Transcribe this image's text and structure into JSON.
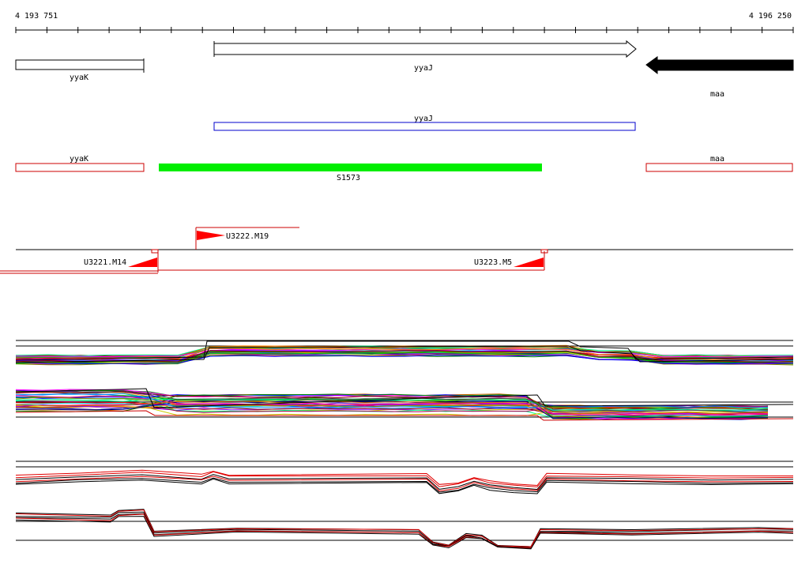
{
  "ruler": {
    "start_label": "4 193 751",
    "end_label": "4 196 250"
  },
  "genes": [
    {
      "name": "yyaK",
      "strand": "+",
      "style": "outline"
    },
    {
      "name": "yyaJ",
      "strand": "+",
      "style": "outline-arrow"
    },
    {
      "name": "maa",
      "strand": "-",
      "style": "filled-arrow"
    }
  ],
  "annotations": [
    {
      "name": "yyaJ",
      "color": "#0000cc"
    },
    {
      "name": "yyaK",
      "color": "#cc0000"
    },
    {
      "name": "maa",
      "color": "#cc0000"
    }
  ],
  "segment": {
    "name": "S1573",
    "color": "#00ee00"
  },
  "markers": [
    {
      "name": "U3222.M19"
    },
    {
      "name": "U3221.M14"
    },
    {
      "name": "U3223.M5"
    }
  ],
  "colors": {
    "outline": "#000000",
    "annotation_red": "#cc0000",
    "annotation_blue": "#0000cc",
    "segment_green": "#00ee00",
    "marker_red": "#ff0000",
    "trace_red": "#e00000"
  },
  "tracks": [
    {
      "id": "track-1",
      "kind": "multicolor"
    },
    {
      "id": "track-2",
      "kind": "multicolor"
    },
    {
      "id": "track-3",
      "kind": "red-black"
    },
    {
      "id": "track-4",
      "kind": "red-black"
    }
  ]
}
